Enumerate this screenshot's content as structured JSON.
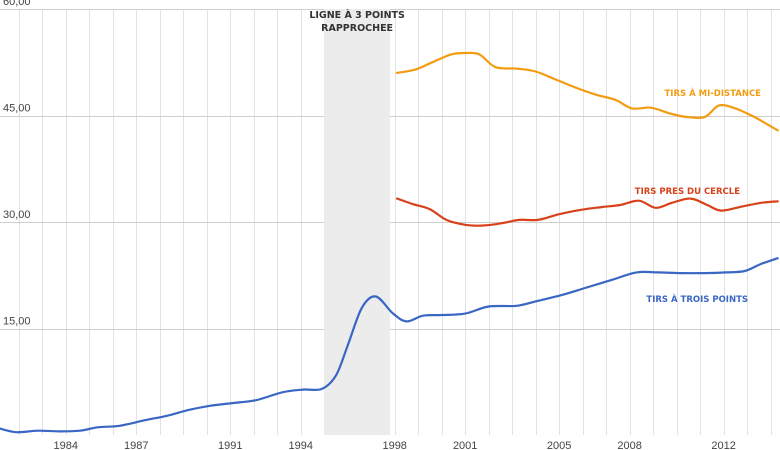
{
  "chart_data": {
    "type": "line",
    "title": "",
    "xlabel": "",
    "ylabel": "",
    "xlim": [
      1981.2,
      2014.4
    ],
    "ylim": [
      0,
      60
    ],
    "yticks": [
      {
        "value": 15,
        "label": "15,00"
      },
      {
        "value": 30,
        "label": "30,00"
      },
      {
        "value": 45,
        "label": "45,00"
      },
      {
        "value": 60,
        "label": "60,00"
      }
    ],
    "xticks": [
      {
        "value": 1984,
        "label": "1984"
      },
      {
        "value": 1987,
        "label": "1987"
      },
      {
        "value": 1991,
        "label": "1991"
      },
      {
        "value": 1994,
        "label": "1994"
      },
      {
        "value": 1998,
        "label": "1998"
      },
      {
        "value": 2001,
        "label": "2001"
      },
      {
        "value": 2005,
        "label": "2005"
      },
      {
        "value": 2008,
        "label": "2008"
      },
      {
        "value": 2012,
        "label": "2012"
      }
    ],
    "grid": true,
    "band": {
      "label_lines": [
        "LIGNE À 3 POINTS",
        "RAPPROCHEE"
      ],
      "x_range": [
        1995.0,
        1997.8
      ],
      "color": "#ececec"
    },
    "series": [
      {
        "name": "TIRS À MI-DISTANCE",
        "color": "#f39c12",
        "x": [
          1998.1,
          1998.9,
          1999.6,
          2000.4,
          2001.0,
          2001.6,
          2002.3,
          2003.2,
          2004.0,
          2004.9,
          2005.8,
          2006.6,
          2007.4,
          2008.1,
          2008.9,
          2009.7,
          2010.4,
          2011.2,
          2011.8,
          2012.5,
          2013.3,
          2014.3
        ],
        "y": [
          51.0,
          51.5,
          52.5,
          53.6,
          53.8,
          53.6,
          51.8,
          51.6,
          51.2,
          50.0,
          48.8,
          47.9,
          47.2,
          46.0,
          46.1,
          45.3,
          44.8,
          44.8,
          46.4,
          46.0,
          44.8,
          42.9
        ]
      },
      {
        "name": "TIRS PRES DU CERCLE",
        "color": "#d8421b",
        "x": [
          1998.1,
          1998.8,
          1999.5,
          2000.2,
          2001.0,
          2001.7,
          2002.5,
          2003.3,
          2004.1,
          2005.0,
          2005.9,
          2006.8,
          2007.6,
          2008.4,
          2009.1,
          2009.8,
          2010.6,
          2011.3,
          2011.9,
          2012.8,
          2013.6,
          2014.3
        ],
        "y": [
          33.3,
          32.5,
          31.8,
          30.3,
          29.6,
          29.5,
          29.8,
          30.3,
          30.3,
          31.1,
          31.7,
          32.1,
          32.4,
          33.0,
          32.0,
          32.7,
          33.3,
          32.4,
          31.6,
          32.2,
          32.7,
          32.9
        ]
      },
      {
        "name": "TIRS À TROIS POINTS",
        "color": "#3a66c4",
        "x": [
          1981.2,
          1981.9,
          1982.8,
          1983.8,
          1984.6,
          1985.4,
          1986.3,
          1987.4,
          1988.3,
          1989.2,
          1990.1,
          1991.1,
          1992.1,
          1993.2,
          1994.1,
          1994.9,
          1995.5,
          1996.0,
          1996.6,
          1997.2,
          1997.9,
          1998.5,
          1999.2,
          2000.0,
          2001.0,
          2002.0,
          2003.2,
          2004.1,
          2005.1,
          2006.1,
          2007.2,
          2008.3,
          2009.2,
          2010.2,
          2011.2,
          2012.1,
          2012.9,
          2013.6,
          2014.3
        ],
        "y": [
          0.9,
          0.4,
          0.6,
          0.5,
          0.6,
          1.1,
          1.3,
          2.1,
          2.7,
          3.5,
          4.1,
          4.5,
          4.9,
          6.0,
          6.4,
          6.5,
          8.4,
          12.6,
          17.9,
          19.5,
          17.2,
          16.0,
          16.8,
          16.9,
          17.1,
          18.1,
          18.2,
          18.9,
          19.7,
          20.7,
          21.8,
          22.9,
          22.9,
          22.8,
          22.8,
          22.9,
          23.1,
          24.1,
          24.9
        ]
      }
    ]
  }
}
